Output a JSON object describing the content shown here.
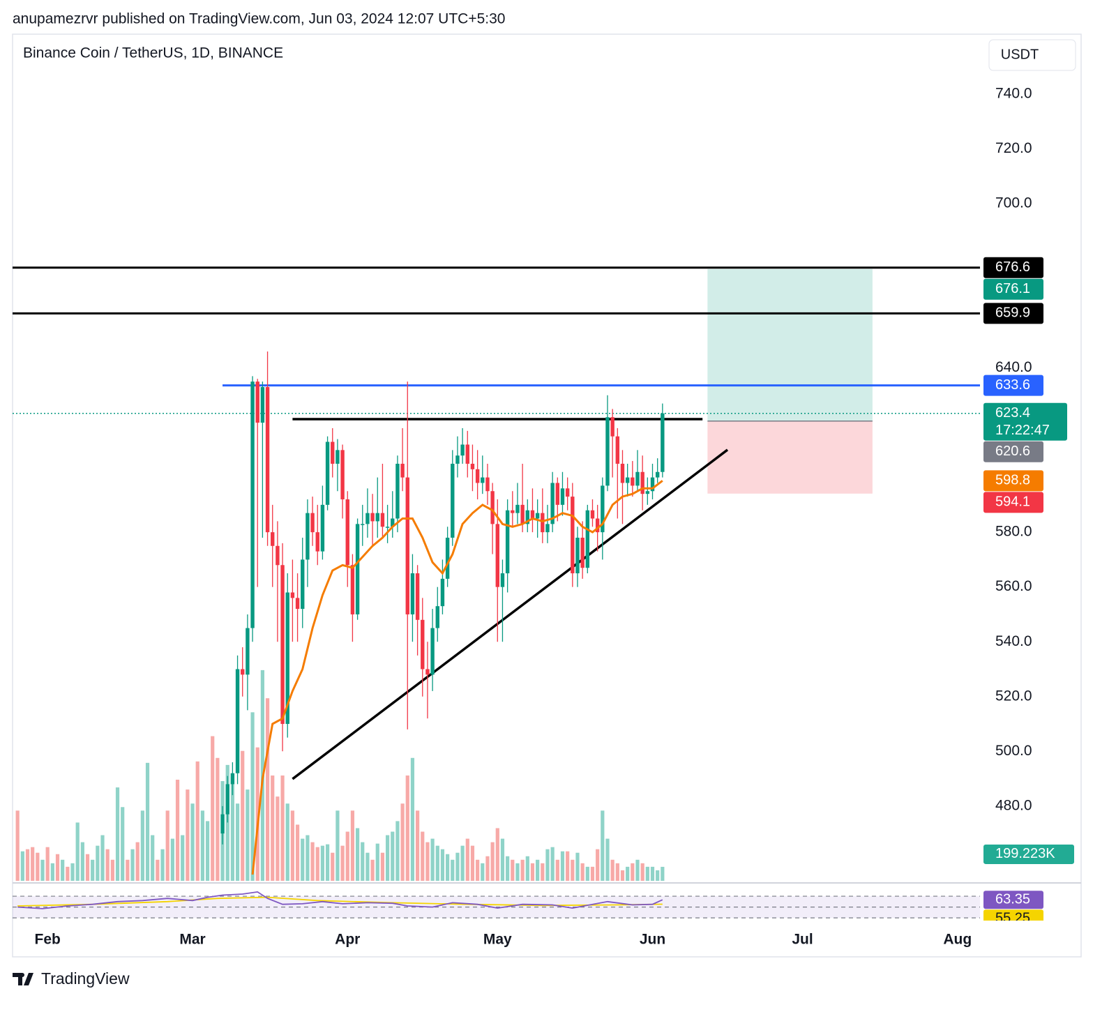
{
  "header": "anupamezrvr published on TradingView.com, Jun 03, 2024 12:07 UTC+5:30",
  "footer": "TradingView",
  "chart_data": {
    "type": "candlestick",
    "title": "Binance Coin / TetherUS, 1D, BINANCE",
    "currency": "USDT",
    "up_color": "#089981",
    "down_color": "#f23645",
    "xlim": [
      24,
      217.5
    ],
    "xticks": [
      {
        "value": 31,
        "label": "Feb"
      },
      {
        "value": 60,
        "label": "Mar"
      },
      {
        "value": 91,
        "label": "Apr"
      },
      {
        "value": 121,
        "label": "May"
      },
      {
        "value": 152,
        "label": "Jun"
      },
      {
        "value": 182,
        "label": "Jul"
      },
      {
        "value": 213,
        "label": "Aug"
      }
    ],
    "ylim": [
      452.2,
      747.6
    ],
    "yticks": [
      {
        "value": 480,
        "label": "480.0"
      },
      {
        "value": 500,
        "label": "500.0"
      },
      {
        "value": 520,
        "label": "520.0"
      },
      {
        "value": 540,
        "label": "540.0"
      },
      {
        "value": 560,
        "label": "560.0"
      },
      {
        "value": 580,
        "label": "580.0"
      },
      {
        "value": 640,
        "label": "640.0"
      },
      {
        "value": 700,
        "label": "700.0"
      },
      {
        "value": 720,
        "label": "720.0"
      },
      {
        "value": 740,
        "label": "740.0"
      }
    ],
    "x": [
      66,
      67,
      68,
      69,
      70,
      71,
      72,
      73,
      74,
      75,
      76,
      77,
      78,
      79,
      80,
      81,
      82,
      83,
      84,
      85,
      86,
      87,
      88,
      89,
      90,
      91,
      92,
      93,
      94,
      95,
      96,
      97,
      98,
      99,
      100,
      101,
      102,
      103,
      104,
      105,
      106,
      107,
      108,
      109,
      110,
      111,
      112,
      113,
      114,
      115,
      116,
      117,
      118,
      119,
      120,
      121,
      122,
      123,
      124,
      125,
      126,
      127,
      128,
      129,
      130,
      131,
      132,
      133,
      134,
      135,
      136,
      137,
      138,
      139,
      140,
      141,
      142,
      143,
      144,
      145,
      146,
      147,
      148,
      149,
      150,
      151,
      152,
      153,
      154
    ],
    "open": [
      470,
      477,
      488,
      492,
      530,
      528,
      545,
      635,
      620,
      633,
      580,
      575,
      568,
      510,
      558,
      556,
      552,
      570,
      587,
      580,
      573,
      590,
      613,
      605,
      610,
      592,
      568,
      550,
      583,
      583,
      587,
      584,
      587,
      582,
      582,
      585,
      605,
      600,
      550,
      565,
      548,
      530,
      528,
      545,
      553,
      563,
      578,
      605,
      608,
      612,
      605,
      603,
      598,
      600,
      595,
      583,
      560,
      565,
      588,
      587,
      590,
      583,
      588,
      585,
      587,
      580,
      583,
      598,
      590,
      596,
      593,
      565,
      578,
      567,
      588,
      585,
      580,
      597,
      622,
      615,
      605,
      598,
      600,
      597,
      602,
      594,
      595,
      600,
      602
    ],
    "high": [
      480,
      491,
      496,
      535,
      538,
      550,
      637,
      636,
      635,
      646,
      590,
      584,
      576,
      565,
      570,
      565,
      578,
      592,
      593,
      590,
      597,
      615,
      618,
      614,
      612,
      595,
      572,
      585,
      590,
      596,
      594,
      600,
      605,
      590,
      595,
      608,
      618,
      635,
      572,
      568,
      556,
      540,
      552,
      560,
      570,
      582,
      610,
      615,
      618,
      617,
      612,
      610,
      608,
      605,
      598,
      592,
      570,
      592,
      595,
      598,
      605,
      592,
      596,
      592,
      596,
      590,
      602,
      600,
      602,
      600,
      598,
      582,
      584,
      590,
      592,
      590,
      600,
      630,
      625,
      618,
      610,
      605,
      606,
      610,
      608,
      600,
      605,
      607,
      627
    ],
    "low": [
      466,
      474,
      484,
      488,
      520,
      515,
      540,
      560,
      578,
      575,
      560,
      540,
      500,
      505,
      540,
      540,
      545,
      560,
      575,
      568,
      570,
      588,
      600,
      595,
      585,
      560,
      540,
      548,
      575,
      578,
      575,
      578,
      578,
      576,
      578,
      580,
      595,
      508,
      540,
      535,
      520,
      512,
      522,
      540,
      550,
      560,
      575,
      600,
      605,
      600,
      595,
      592,
      594,
      590,
      572,
      540,
      540,
      558,
      582,
      583,
      580,
      580,
      580,
      578,
      576,
      576,
      580,
      584,
      586,
      588,
      560,
      560,
      563,
      565,
      582,
      573,
      570,
      595,
      600,
      585,
      583,
      593,
      593,
      595,
      588,
      590,
      592,
      598,
      600
    ],
    "close": [
      477,
      488,
      492,
      530,
      528,
      545,
      635,
      620,
      633,
      580,
      575,
      568,
      510,
      558,
      556,
      552,
      570,
      587,
      580,
      573,
      590,
      613,
      605,
      610,
      592,
      568,
      550,
      583,
      583,
      587,
      584,
      587,
      582,
      582,
      585,
      605,
      600,
      550,
      565,
      548,
      530,
      528,
      545,
      553,
      563,
      578,
      605,
      608,
      612,
      605,
      603,
      598,
      600,
      595,
      583,
      560,
      565,
      588,
      587,
      590,
      583,
      588,
      585,
      587,
      580,
      583,
      598,
      590,
      596,
      593,
      565,
      578,
      567,
      588,
      585,
      580,
      597,
      622,
      615,
      605,
      598,
      600,
      597,
      602,
      594,
      595,
      600,
      602,
      623.4
    ],
    "countdown": "17:22:47",
    "ema": {
      "color": "#f57c00",
      "x": [
        72,
        74,
        76,
        78,
        80,
        82,
        84,
        86,
        88,
        90,
        92,
        94,
        96,
        98,
        100,
        102,
        104,
        106,
        108,
        110,
        112,
        114,
        116,
        118,
        120,
        122,
        124,
        126,
        128,
        130,
        132,
        134,
        136,
        138,
        140,
        142,
        144,
        146,
        148,
        150,
        152,
        154
      ],
      "values": [
        455,
        490,
        510,
        512,
        522,
        530,
        545,
        557,
        566,
        568,
        567,
        571,
        575,
        578,
        582,
        585,
        585,
        578,
        569,
        565,
        572,
        583,
        587,
        590,
        588,
        583,
        582,
        583,
        585,
        584,
        585,
        587,
        586,
        582,
        580,
        583,
        590,
        593,
        594,
        596,
        596,
        598.8
      ]
    },
    "volume": {
      "up_color": "#8fd3c8",
      "down_color": "#f7a9a7",
      "ylim": [
        0,
        11500
      ],
      "x": [
        25,
        26,
        27,
        28,
        29,
        30,
        31,
        32,
        33,
        34,
        35,
        36,
        37,
        38,
        39,
        40,
        41,
        42,
        43,
        44,
        45,
        46,
        47,
        48,
        49,
        50,
        51,
        52,
        53,
        54,
        55,
        56,
        57,
        58,
        59,
        60,
        61,
        62,
        63,
        64,
        65,
        66,
        67,
        68,
        69,
        70,
        71,
        72,
        73,
        74,
        75,
        76,
        77,
        78,
        79,
        80,
        81,
        82,
        83,
        84,
        85,
        86,
        87,
        88,
        89,
        90,
        91,
        92,
        93,
        94,
        95,
        96,
        97,
        98,
        99,
        100,
        101,
        102,
        103,
        104,
        105,
        106,
        107,
        108,
        109,
        110,
        111,
        112,
        113,
        114,
        115,
        116,
        117,
        118,
        119,
        120,
        121,
        122,
        123,
        124,
        125,
        126,
        127,
        128,
        129,
        130,
        131,
        132,
        133,
        134,
        135,
        136,
        137,
        138,
        139,
        140,
        141,
        142,
        143,
        144,
        145,
        146,
        147,
        148,
        149,
        150,
        151,
        152,
        153,
        154
      ],
      "values": [
        1000,
        420,
        450,
        480,
        400,
        300,
        480,
        250,
        380,
        300,
        200,
        250,
        830,
        550,
        380,
        300,
        500,
        650,
        450,
        300,
        1330,
        1050,
        300,
        450,
        550,
        1000,
        1680,
        650,
        300,
        450,
        1000,
        600,
        1440,
        650,
        1300,
        1100,
        1700,
        1000,
        850,
        2060,
        1750,
        1420,
        1650,
        1480,
        1100,
        1850,
        1300,
        2400,
        1900,
        3000,
        2600,
        1500,
        1200,
        1500,
        1100,
        1000,
        800,
        600,
        650,
        550,
        480,
        500,
        520,
        400,
        1000,
        500,
        700,
        1000,
        750,
        550,
        400,
        300,
        530,
        400,
        650,
        700,
        850,
        1100,
        1500,
        1750,
        1000,
        700,
        550,
        600,
        500,
        450,
        380,
        300,
        400,
        500,
        600,
        500,
        300,
        250,
        350,
        550,
        750,
        600,
        350,
        300,
        250,
        300,
        350,
        250,
        300,
        250,
        450,
        480,
        300,
        420,
        420,
        300,
        400,
        250,
        200,
        200,
        450,
        1000,
        600,
        300,
        250,
        150,
        200,
        250,
        300,
        250,
        200,
        200,
        150,
        199.223
      ],
      "up": [
        false,
        true,
        false,
        false,
        false,
        true,
        false,
        true,
        false,
        true,
        false,
        true,
        true,
        true,
        false,
        true,
        true,
        true,
        false,
        false,
        true,
        true,
        false,
        true,
        false,
        true,
        true,
        true,
        false,
        true,
        false,
        true,
        false,
        true,
        false,
        true,
        false,
        true,
        true,
        false,
        false,
        true,
        true,
        true,
        true,
        false,
        true,
        true,
        false,
        true,
        false,
        false,
        false,
        false,
        true,
        false,
        false,
        true,
        true,
        false,
        false,
        true,
        true,
        false,
        true,
        false,
        false,
        false,
        true,
        true,
        true,
        false,
        true,
        false,
        true,
        true,
        true,
        false,
        false,
        true,
        false,
        false,
        false,
        true,
        true,
        true,
        true,
        true,
        true,
        true,
        false,
        false,
        false,
        true,
        false,
        false,
        false,
        true,
        true,
        false,
        true,
        false,
        true,
        false,
        true,
        false,
        true,
        true,
        false,
        true,
        false,
        false,
        true,
        false,
        true,
        false,
        false,
        true,
        true,
        false,
        false,
        false,
        true,
        false,
        true,
        false,
        true,
        true,
        true,
        true
      ],
      "current_label": {
        "value": 199.223,
        "label": "199.223K"
      }
    },
    "hlines": [
      {
        "value": 676.6,
        "color": "#000000"
      },
      {
        "value": 659.9,
        "color": "#000000"
      },
      {
        "value": 633.6,
        "color": "#2962ff",
        "x_start": 66
      }
    ],
    "trend_lines": [
      {
        "color": "#000000",
        "x": [
          80,
          162
        ],
        "values": [
          621.3,
          621.3
        ]
      },
      {
        "color": "#000000",
        "x": [
          80,
          167
        ],
        "values": [
          489.9,
          610.1
        ]
      }
    ],
    "position": {
      "x_start": 163,
      "x_end": 196,
      "target": 676.1,
      "entry": 620.6,
      "stop": 594.1,
      "target_color": "#089981",
      "entry_color": "#787b86",
      "stop_color": "#f23645"
    },
    "rsi": {
      "color": "#7e57c2",
      "ylim": [
        25,
        92
      ],
      "yticks": [
        30,
        50,
        70
      ],
      "x": [
        25,
        30,
        35,
        40,
        45,
        50,
        55,
        60,
        63,
        66,
        70,
        73,
        75,
        78,
        82,
        86,
        90,
        95,
        100,
        103,
        108,
        112,
        117,
        121,
        126,
        132,
        136,
        143,
        148,
        152,
        154
      ],
      "values": [
        50,
        47,
        52,
        55,
        60,
        62,
        66,
        62,
        68,
        72,
        74,
        78,
        66,
        55,
        56,
        60,
        56,
        58,
        57,
        52,
        50,
        58,
        55,
        48,
        55,
        54,
        48,
        60,
        54,
        55,
        63.35
      ],
      "ma": {
        "color": "#f5d400",
        "x": [
          25,
          40,
          55,
          65,
          75,
          85,
          100,
          115,
          130,
          145,
          154
        ],
        "values": [
          52,
          55,
          60,
          66,
          68,
          62,
          58,
          55,
          53,
          54,
          55.25
        ]
      }
    }
  }
}
